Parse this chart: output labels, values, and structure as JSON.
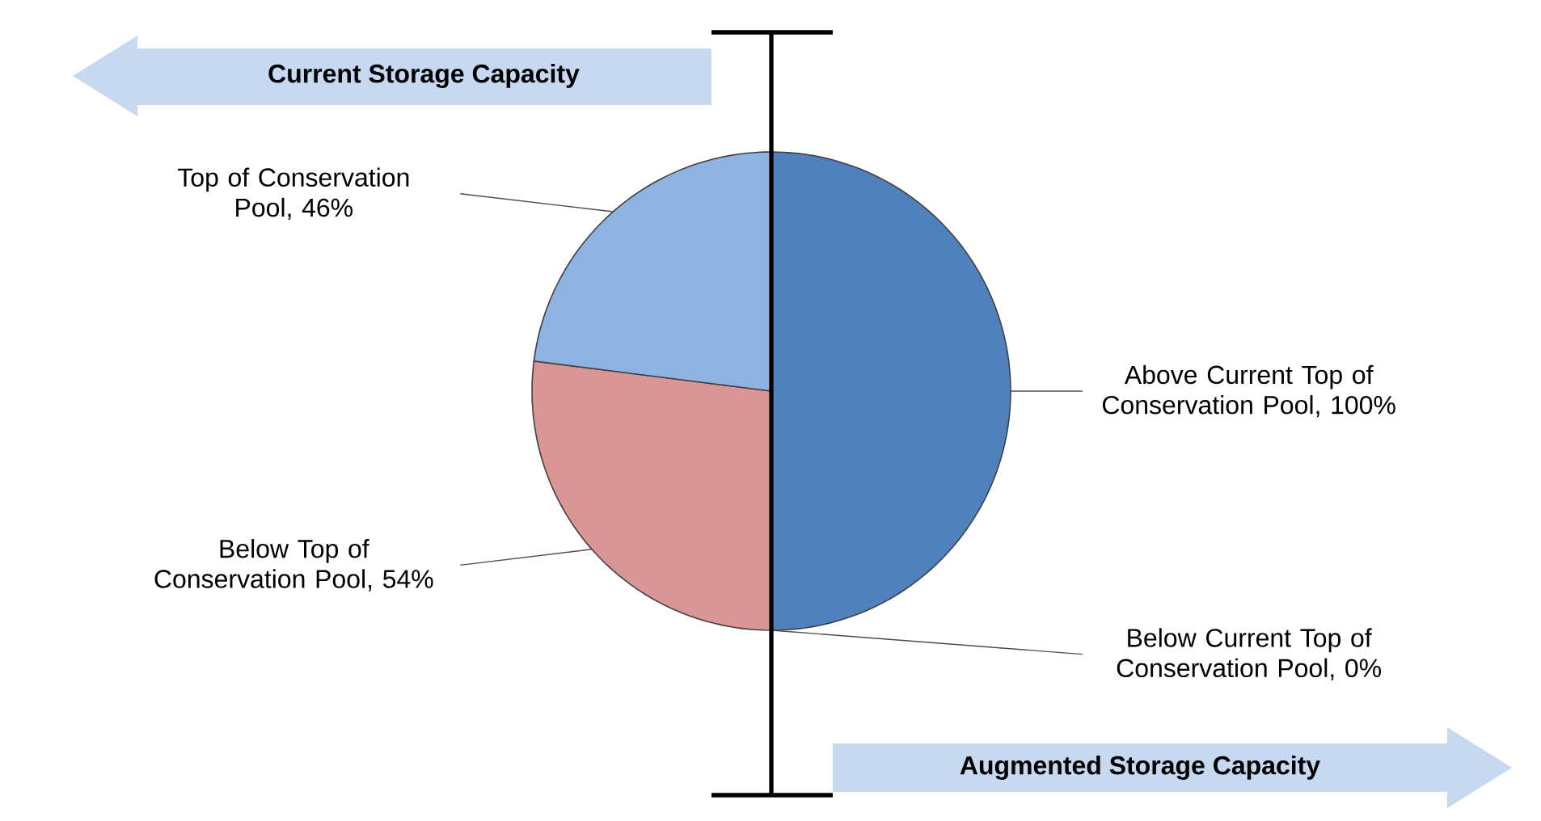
{
  "chart_data": {
    "type": "pie",
    "categories": [
      "Above Current Top of Conservation Pool, 100%",
      "Below Current Top of Conservation Pool, 0%",
      "Below Top of Conservation Pool, 54%",
      "Top of Conservation Pool, 46%"
    ],
    "values": [
      100,
      0,
      54,
      46
    ],
    "colors": [
      "#4f81bd",
      "#4f81bd",
      "#d99694",
      "#8db3e2"
    ],
    "annotations": [
      "Current Storage Capacity",
      "Augmented Storage Capacity"
    ]
  }
}
